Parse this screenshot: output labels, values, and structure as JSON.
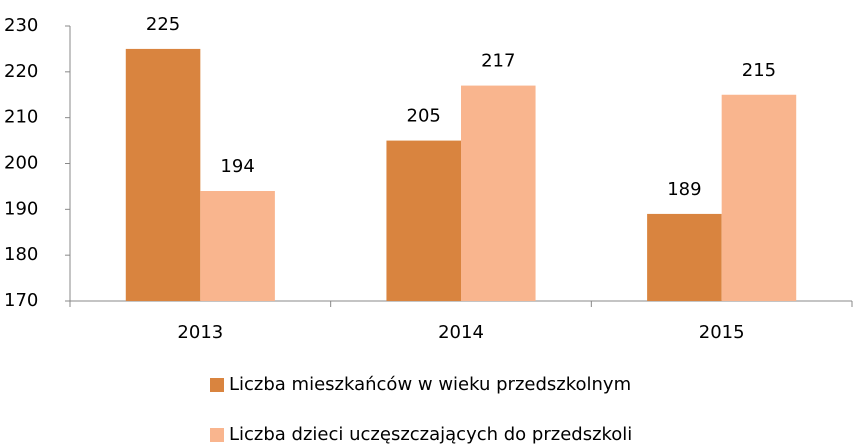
{
  "chart_data": {
    "type": "bar",
    "categories": [
      "2013",
      "2014",
      "2015"
    ],
    "series": [
      {
        "name": "Liczba mieszkańców w wieku przedszkolnym",
        "color": "#d9843f",
        "values": [
          225,
          205,
          189
        ]
      },
      {
        "name": "Liczba dzieci uczęszczających do przedszkoli",
        "color": "#f9b58e",
        "values": [
          194,
          217,
          215
        ]
      }
    ],
    "ylim": [
      170,
      230
    ],
    "yticks": [
      170,
      180,
      190,
      200,
      210,
      220,
      230
    ],
    "grid": false,
    "legend": "bottom"
  }
}
